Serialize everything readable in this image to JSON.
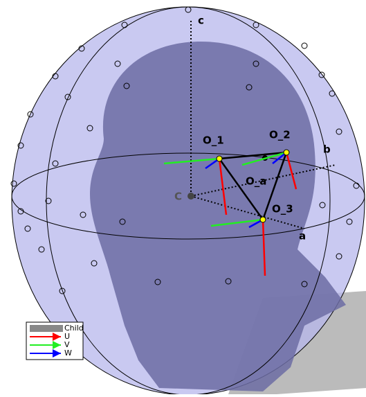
{
  "axes": {
    "a": "a",
    "b": "b",
    "c": "c",
    "center": "C"
  },
  "points": {
    "o1": "O_1",
    "o2": "O_2",
    "o3": "O_3",
    "oa": "O_a"
  },
  "legend": [
    "Child",
    "U",
    "V",
    "W"
  ]
}
